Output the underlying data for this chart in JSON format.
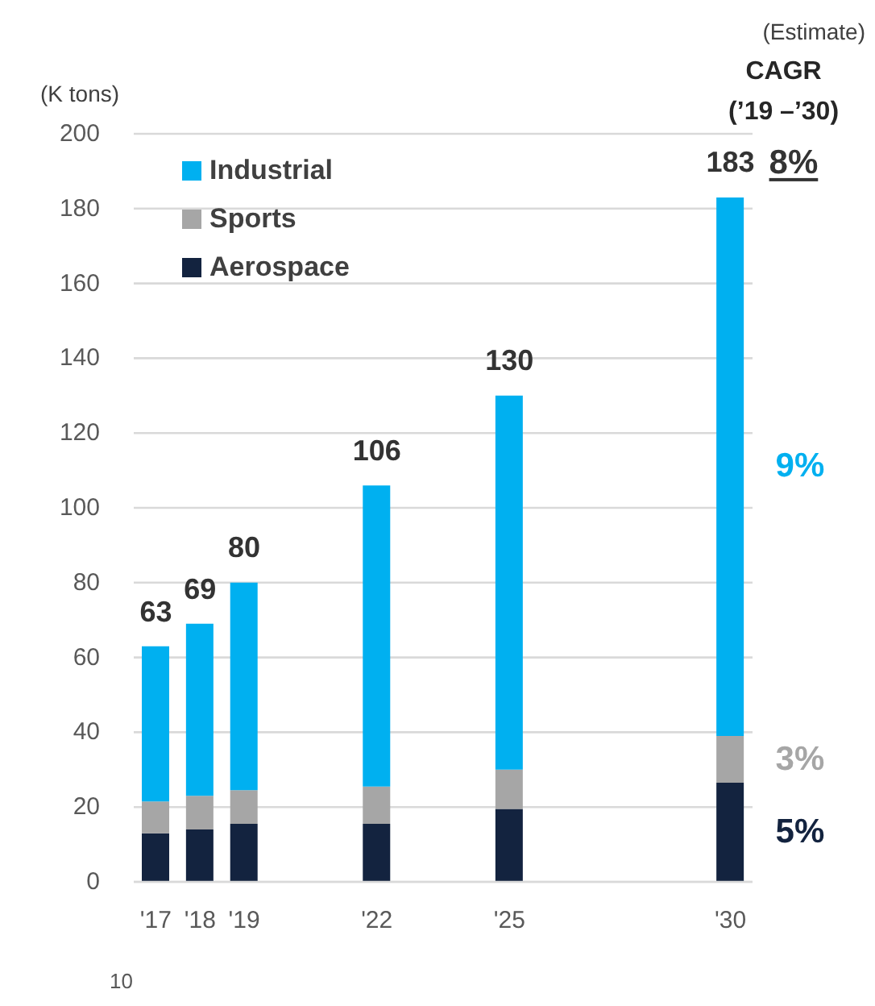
{
  "chart_data": {
    "type": "bar",
    "stacked": true,
    "x": [
      2017,
      2018,
      2019,
      2022,
      2025,
      2030
    ],
    "series": [
      {
        "name": "Aerospace",
        "color": "#13233f",
        "values": [
          13,
          14,
          15.5,
          15.5,
          19.5,
          26.5
        ]
      },
      {
        "name": "Sports",
        "color": "#a6a6a6",
        "values": [
          8.5,
          9,
          9,
          10,
          10.5,
          12.5
        ]
      },
      {
        "name": "Industrial",
        "color": "#00b0f0",
        "values": [
          41.5,
          46,
          55.5,
          80.5,
          100,
          144
        ]
      }
    ],
    "totals": [
      "63",
      "69",
      "80",
      "106",
      "130",
      "183"
    ],
    "ylabel": "(K tons)",
    "xlim": [
      2016.5,
      2030.5
    ],
    "xticks": [
      {
        "value": 2017,
        "label": "'17"
      },
      {
        "value": 2018,
        "label": "'18"
      },
      {
        "value": 2019,
        "label": "'19"
      },
      {
        "value": 2022,
        "label": "'22"
      },
      {
        "value": 2025,
        "label": "'25"
      },
      {
        "value": 2030,
        "label": "'30"
      }
    ],
    "ylim": [
      0,
      200
    ],
    "yticks": [
      0,
      20,
      40,
      60,
      80,
      100,
      120,
      140,
      160,
      180,
      200
    ],
    "grid": "y",
    "legend": "top left",
    "annotations": [
      "(Estimate)",
      "CAGR",
      "(’19 –’30)",
      "8%",
      "9%",
      "3%",
      "5%",
      "10"
    ]
  }
}
